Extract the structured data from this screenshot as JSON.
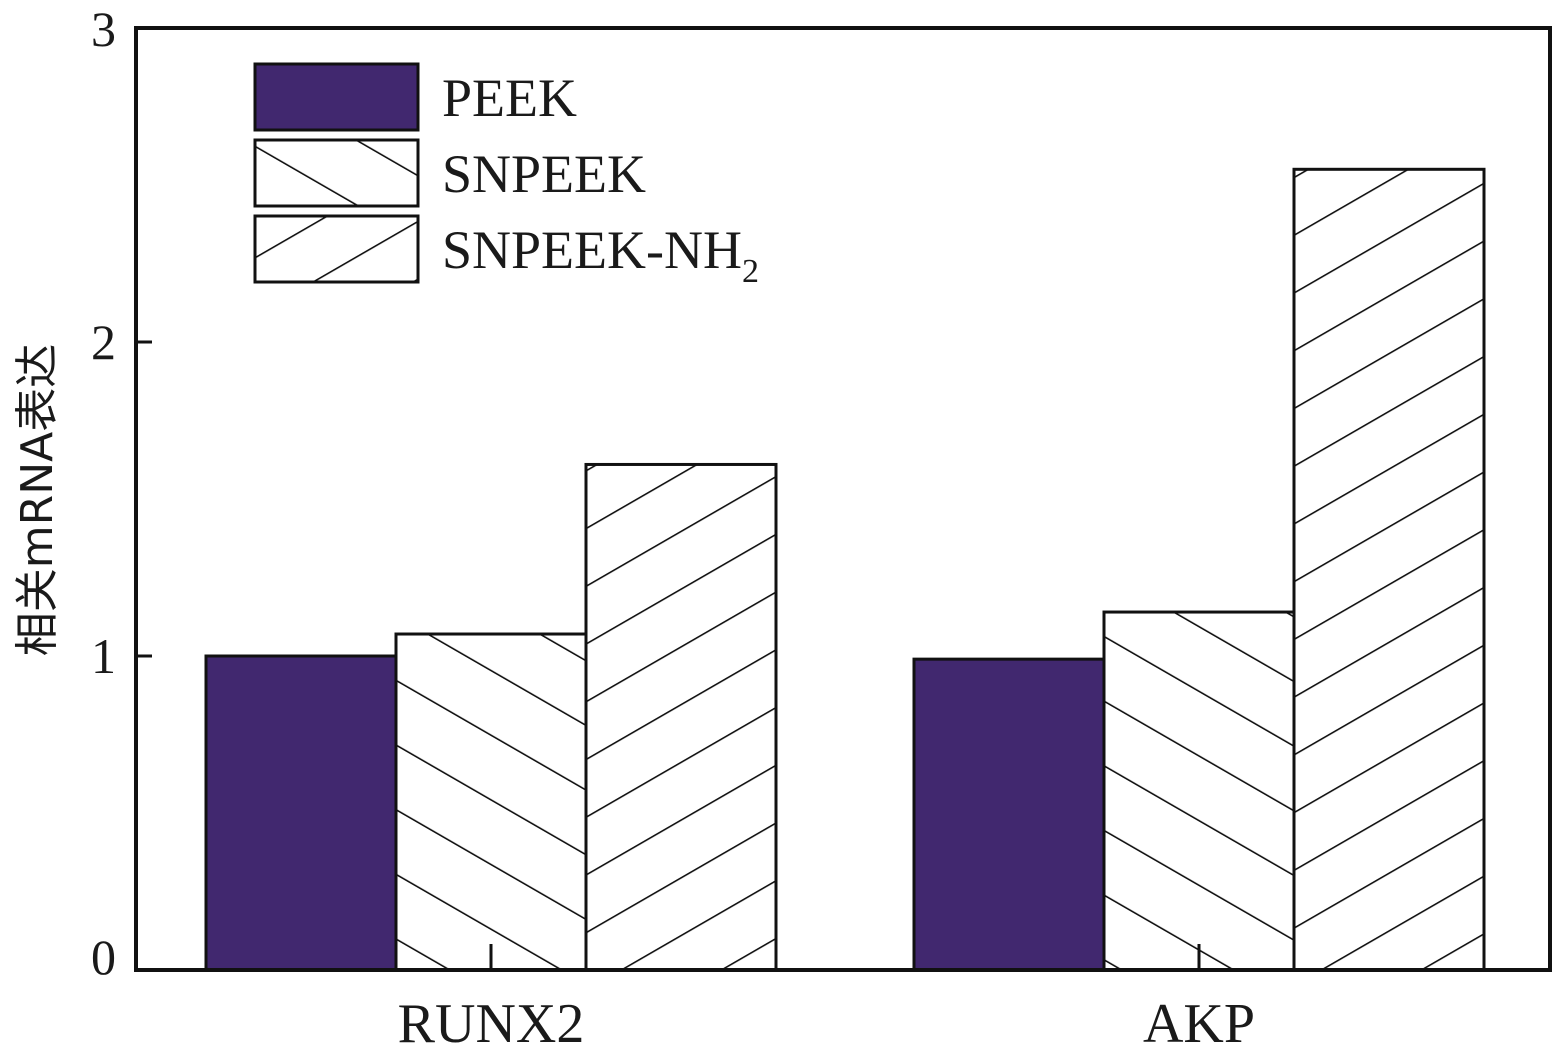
{
  "chart_data": {
    "type": "bar",
    "categories": [
      "RUNX2",
      "AKP"
    ],
    "series": [
      {
        "name": "PEEK",
        "values": [
          1.0,
          0.99
        ],
        "fill": "#41286f",
        "pattern": "solid"
      },
      {
        "name": "SNPEEK",
        "values": [
          1.07,
          1.14
        ],
        "fill": "#ffffff",
        "pattern": "hatch-up"
      },
      {
        "name": "SNPEEK-NH",
        "name_subscript": "2",
        "values": [
          1.61,
          2.55
        ],
        "fill": "#ffffff",
        "pattern": "hatch-down"
      }
    ],
    "ylabel": "相关mRNA表达",
    "xlabel": "",
    "ylim": [
      0,
      3
    ],
    "yticks": [
      "0",
      "1",
      "2",
      "3"
    ],
    "grid": false,
    "legend_position": "top-left"
  }
}
